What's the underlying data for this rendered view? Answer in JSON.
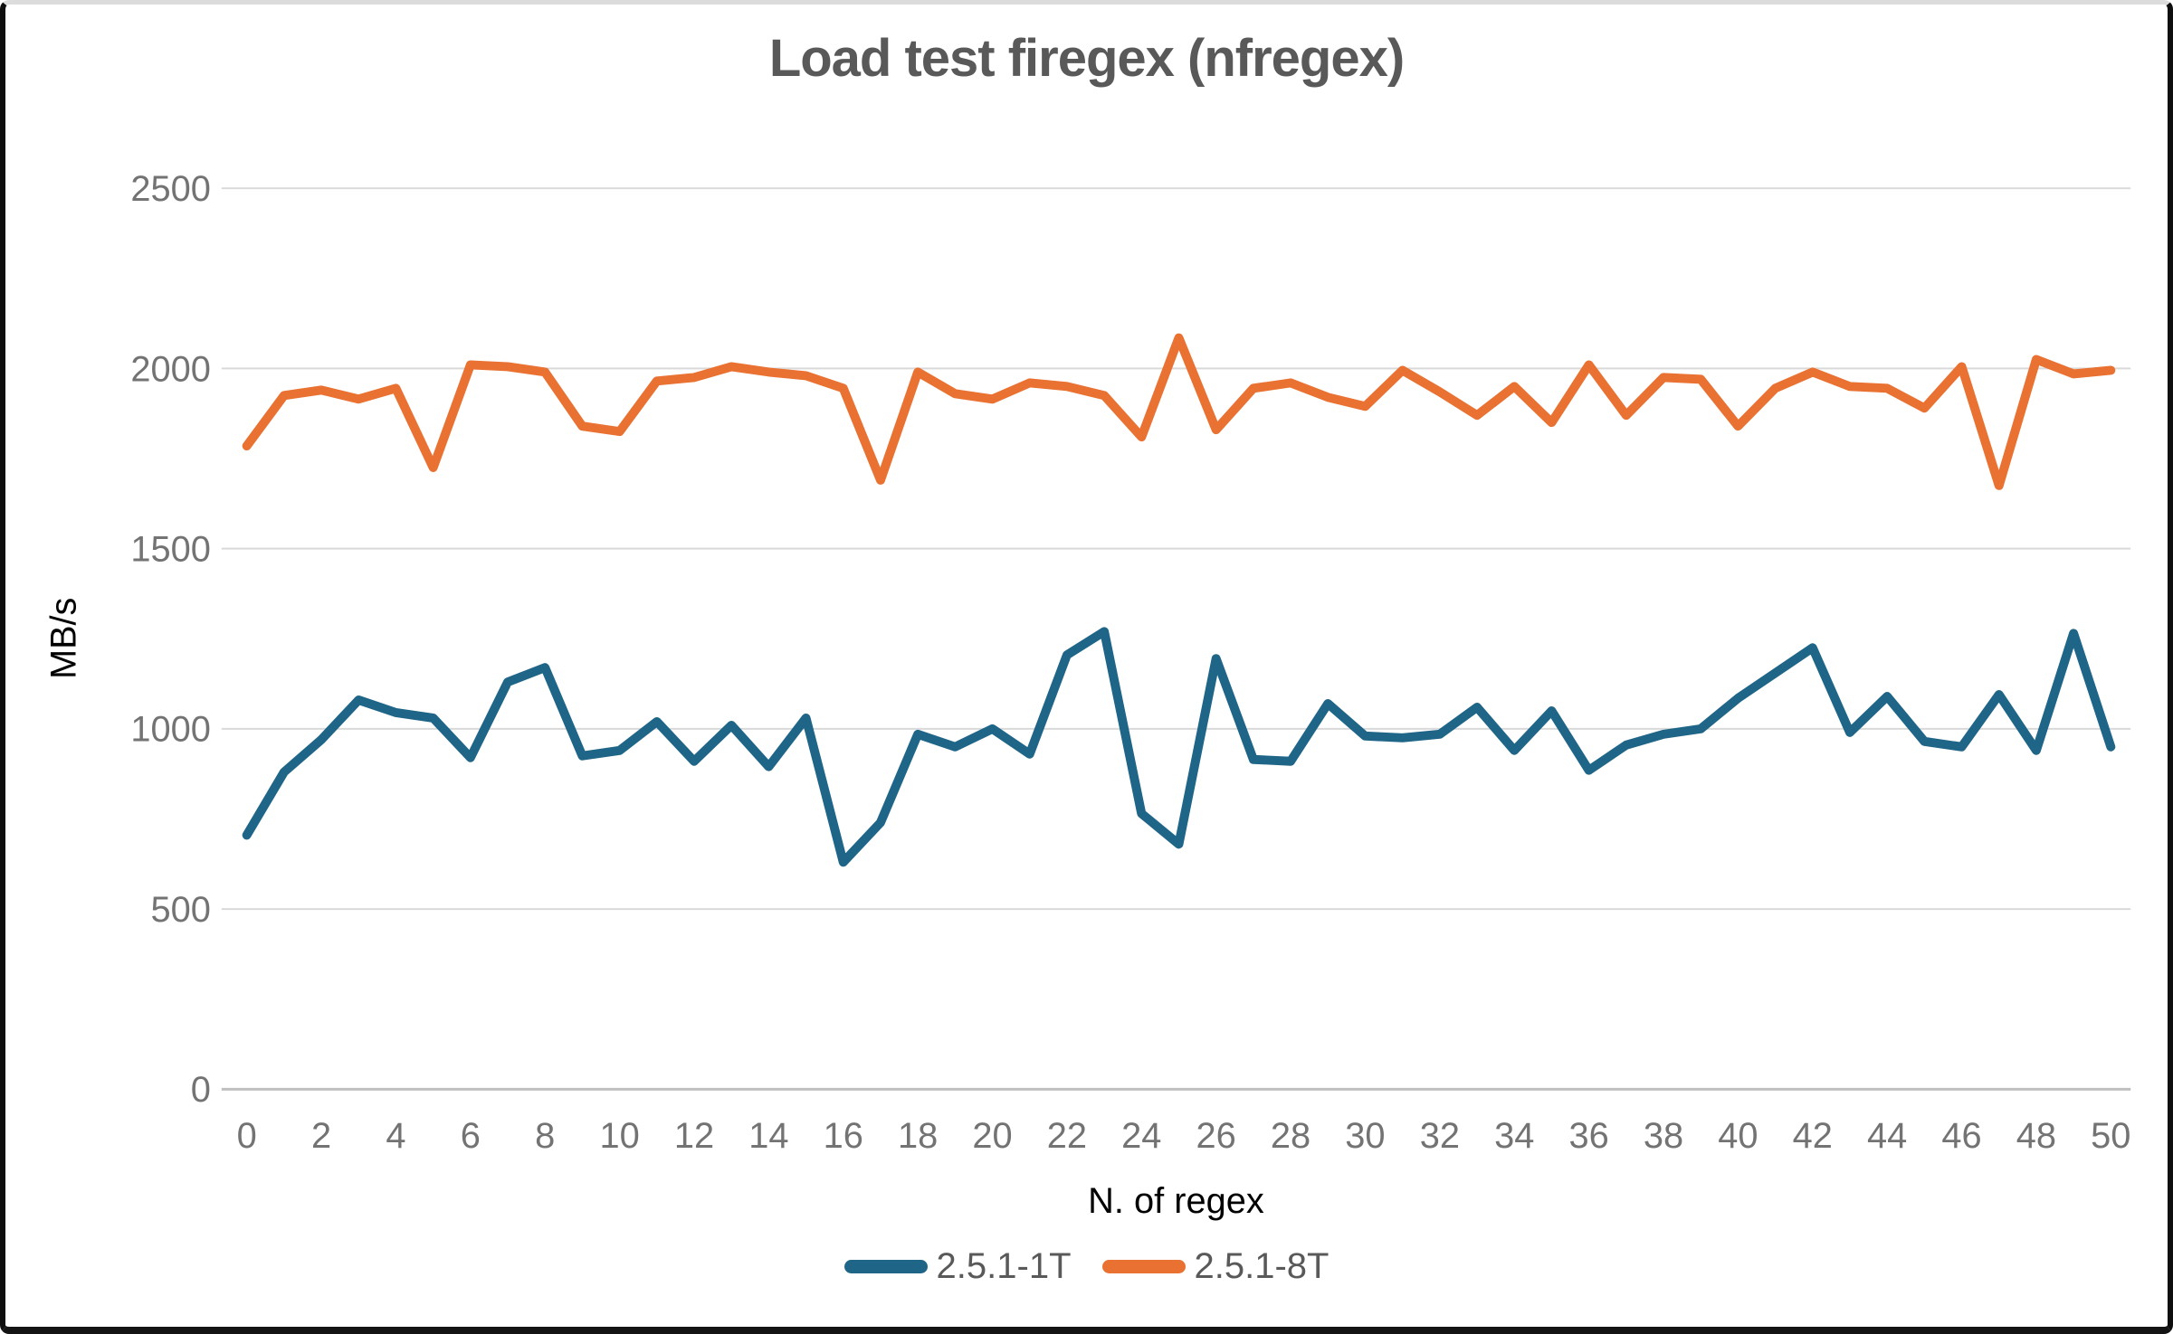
{
  "chart_data": {
    "type": "line",
    "title": "Load test firegex (nfregex)",
    "xlabel": "N. of regex",
    "ylabel": "MB/s",
    "x_range": [
      0,
      50
    ],
    "x_tick_step": 2,
    "ylim": [
      0,
      2500
    ],
    "yticks": [
      0,
      500,
      1000,
      1500,
      2000,
      2500
    ],
    "grid": "horizontal",
    "legend_position": "bottom",
    "x": [
      0,
      1,
      2,
      3,
      4,
      5,
      6,
      7,
      8,
      9,
      10,
      11,
      12,
      13,
      14,
      15,
      16,
      17,
      18,
      19,
      20,
      21,
      22,
      23,
      24,
      25,
      26,
      27,
      28,
      29,
      30,
      31,
      32,
      33,
      34,
      35,
      36,
      37,
      38,
      39,
      40,
      41,
      42,
      43,
      44,
      45,
      46,
      47,
      48,
      49,
      50
    ],
    "series": [
      {
        "name": "2.5.1-1T",
        "color": "#1F6587",
        "values": [
          705,
          880,
          970,
          1080,
          1045,
          1030,
          920,
          1130,
          1170,
          925,
          940,
          1020,
          910,
          1010,
          895,
          1030,
          630,
          740,
          985,
          950,
          1000,
          930,
          1205,
          1270,
          765,
          680,
          1195,
          915,
          910,
          1070,
          980,
          975,
          985,
          1060,
          940,
          1050,
          885,
          955,
          985,
          1000,
          1085,
          1155,
          1225,
          990,
          1090,
          965,
          950,
          1095,
          940,
          1265,
          950
        ]
      },
      {
        "name": "2.5.1-8T",
        "color": "#E97132",
        "values": [
          1785,
          1925,
          1940,
          1915,
          1945,
          1725,
          2010,
          2005,
          1990,
          1840,
          1825,
          1965,
          1975,
          2005,
          1990,
          1980,
          1945,
          1690,
          1990,
          1930,
          1915,
          1960,
          1950,
          1925,
          1810,
          2085,
          1830,
          1945,
          1960,
          1920,
          1895,
          1995,
          1935,
          1870,
          1950,
          1850,
          2010,
          1870,
          1975,
          1970,
          1840,
          1945,
          1990,
          1950,
          1945,
          1890,
          2005,
          1675,
          2025,
          1985,
          1995
        ]
      }
    ]
  }
}
